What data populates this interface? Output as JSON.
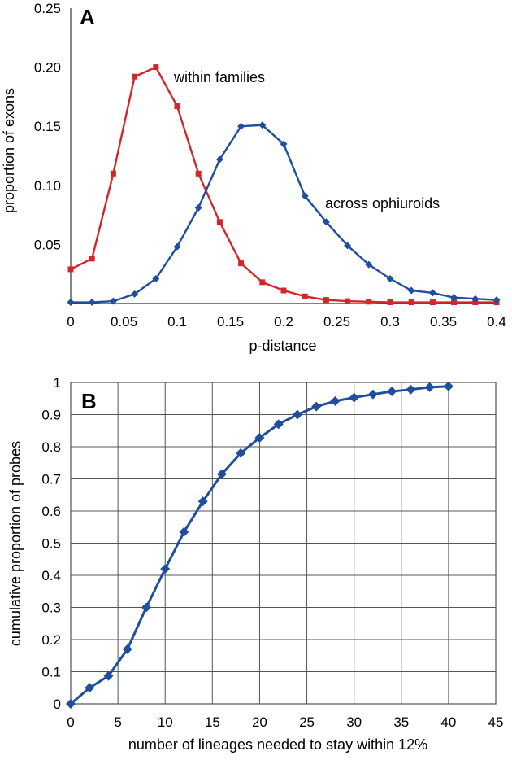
{
  "chart_data": [
    {
      "type": "line",
      "panel_label": "A",
      "xlabel": "p-distance",
      "ylabel": "proportion of exons",
      "xlim": [
        0,
        0.4
      ],
      "ylim": [
        0,
        0.25
      ],
      "xticks": [
        "0",
        "0.05",
        "0.1",
        "0.15",
        "0.2",
        "0.25",
        "0.3",
        "0.35",
        "0.4"
      ],
      "yticks": [
        "0.05",
        "0.10",
        "0.15",
        "0.20",
        "0.25"
      ],
      "grid": false,
      "series": [
        {
          "name": "within families",
          "color": "#d1272b",
          "marker": "square",
          "x": [
            0,
            0.02,
            0.04,
            0.06,
            0.08,
            0.1,
            0.12,
            0.14,
            0.16,
            0.18,
            0.2,
            0.22,
            0.24,
            0.26,
            0.28,
            0.3,
            0.32,
            0.34,
            0.36,
            0.38,
            0.4
          ],
          "y": [
            0.029,
            0.038,
            0.11,
            0.192,
            0.2,
            0.167,
            0.11,
            0.069,
            0.034,
            0.018,
            0.011,
            0.006,
            0.003,
            0.002,
            0.0015,
            0.001,
            0.001,
            0.001,
            0.001,
            0.001,
            0.001
          ]
        },
        {
          "name": "across ophiuroids",
          "color": "#1f4e9c",
          "marker": "diamond",
          "x": [
            0,
            0.02,
            0.04,
            0.06,
            0.08,
            0.1,
            0.12,
            0.14,
            0.16,
            0.18,
            0.2,
            0.22,
            0.24,
            0.26,
            0.28,
            0.3,
            0.32,
            0.34,
            0.36,
            0.38,
            0.4
          ],
          "y": [
            0.001,
            0.001,
            0.002,
            0.008,
            0.021,
            0.048,
            0.081,
            0.122,
            0.15,
            0.151,
            0.135,
            0.091,
            0.069,
            0.049,
            0.033,
            0.021,
            0.011,
            0.009,
            0.005,
            0.004,
            0.003
          ]
        }
      ]
    },
    {
      "type": "line",
      "panel_label": "B",
      "xlabel": "number of lineages needed to stay within 12%",
      "ylabel": "cumulative proportion of probes",
      "xlim": [
        0,
        45
      ],
      "ylim": [
        0,
        1
      ],
      "xticks": [
        "0",
        "5",
        "10",
        "15",
        "20",
        "25",
        "30",
        "35",
        "40",
        "45"
      ],
      "yticks": [
        "0",
        "0.1",
        "0.2",
        "0.3",
        "0.4",
        "0.5",
        "0.6",
        "0.7",
        "0.8",
        "0.9",
        "1"
      ],
      "grid": true,
      "series": [
        {
          "color": "#1f4e9c",
          "marker": "diamond",
          "x": [
            0,
            2,
            4,
            6,
            8,
            10,
            12,
            14,
            16,
            18,
            20,
            22,
            24,
            26,
            28,
            30,
            32,
            34,
            36,
            38,
            40
          ],
          "y": [
            0.0,
            0.05,
            0.087,
            0.17,
            0.3,
            0.42,
            0.535,
            0.63,
            0.715,
            0.78,
            0.828,
            0.87,
            0.9,
            0.925,
            0.942,
            0.953,
            0.963,
            0.972,
            0.978,
            0.985,
            0.988
          ]
        }
      ]
    }
  ]
}
